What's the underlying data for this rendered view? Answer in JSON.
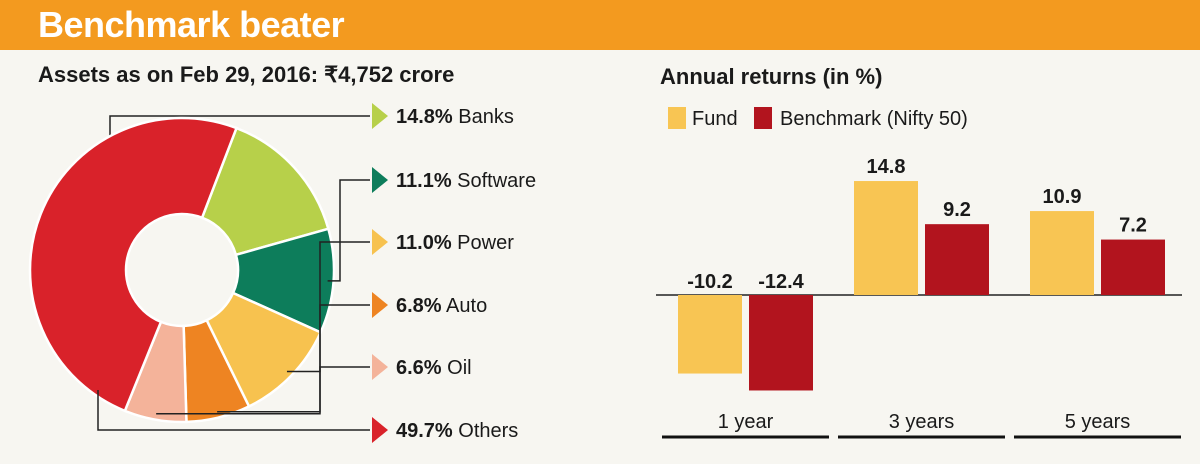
{
  "header": {
    "title": "Benchmark beater"
  },
  "chart_data": [
    {
      "type": "pie",
      "title": "Assets as on Feb 29, 2016: ₹4,752 crore",
      "slices": [
        {
          "label": "Banks",
          "value": 14.8,
          "display": "14.8%",
          "color": "#b7d04a"
        },
        {
          "label": "Software",
          "value": 11.1,
          "display": "11.1%",
          "color": "#0d7d5b"
        },
        {
          "label": "Power",
          "value": 11.0,
          "display": "11.0%",
          "color": "#f7c24f"
        },
        {
          "label": "Auto",
          "value": 6.8,
          "display": "6.8%",
          "color": "#ee8422"
        },
        {
          "label": "Oil",
          "value": 6.6,
          "display": "6.6%",
          "color": "#f4b39a"
        },
        {
          "label": "Others",
          "value": 49.7,
          "display": "49.7%",
          "color": "#d9222a"
        }
      ]
    },
    {
      "type": "bar",
      "title": "Annual returns (in %)",
      "categories": [
        "1 year",
        "3 years",
        "5 years"
      ],
      "series": [
        {
          "name": "Fund",
          "color": "#f8c553",
          "values": [
            -10.2,
            14.8,
            10.9
          ]
        },
        {
          "name": "Benchmark (Nifty 50)",
          "color": "#b2141e",
          "values": [
            -12.4,
            9.2,
            7.2
          ]
        }
      ]
    }
  ]
}
